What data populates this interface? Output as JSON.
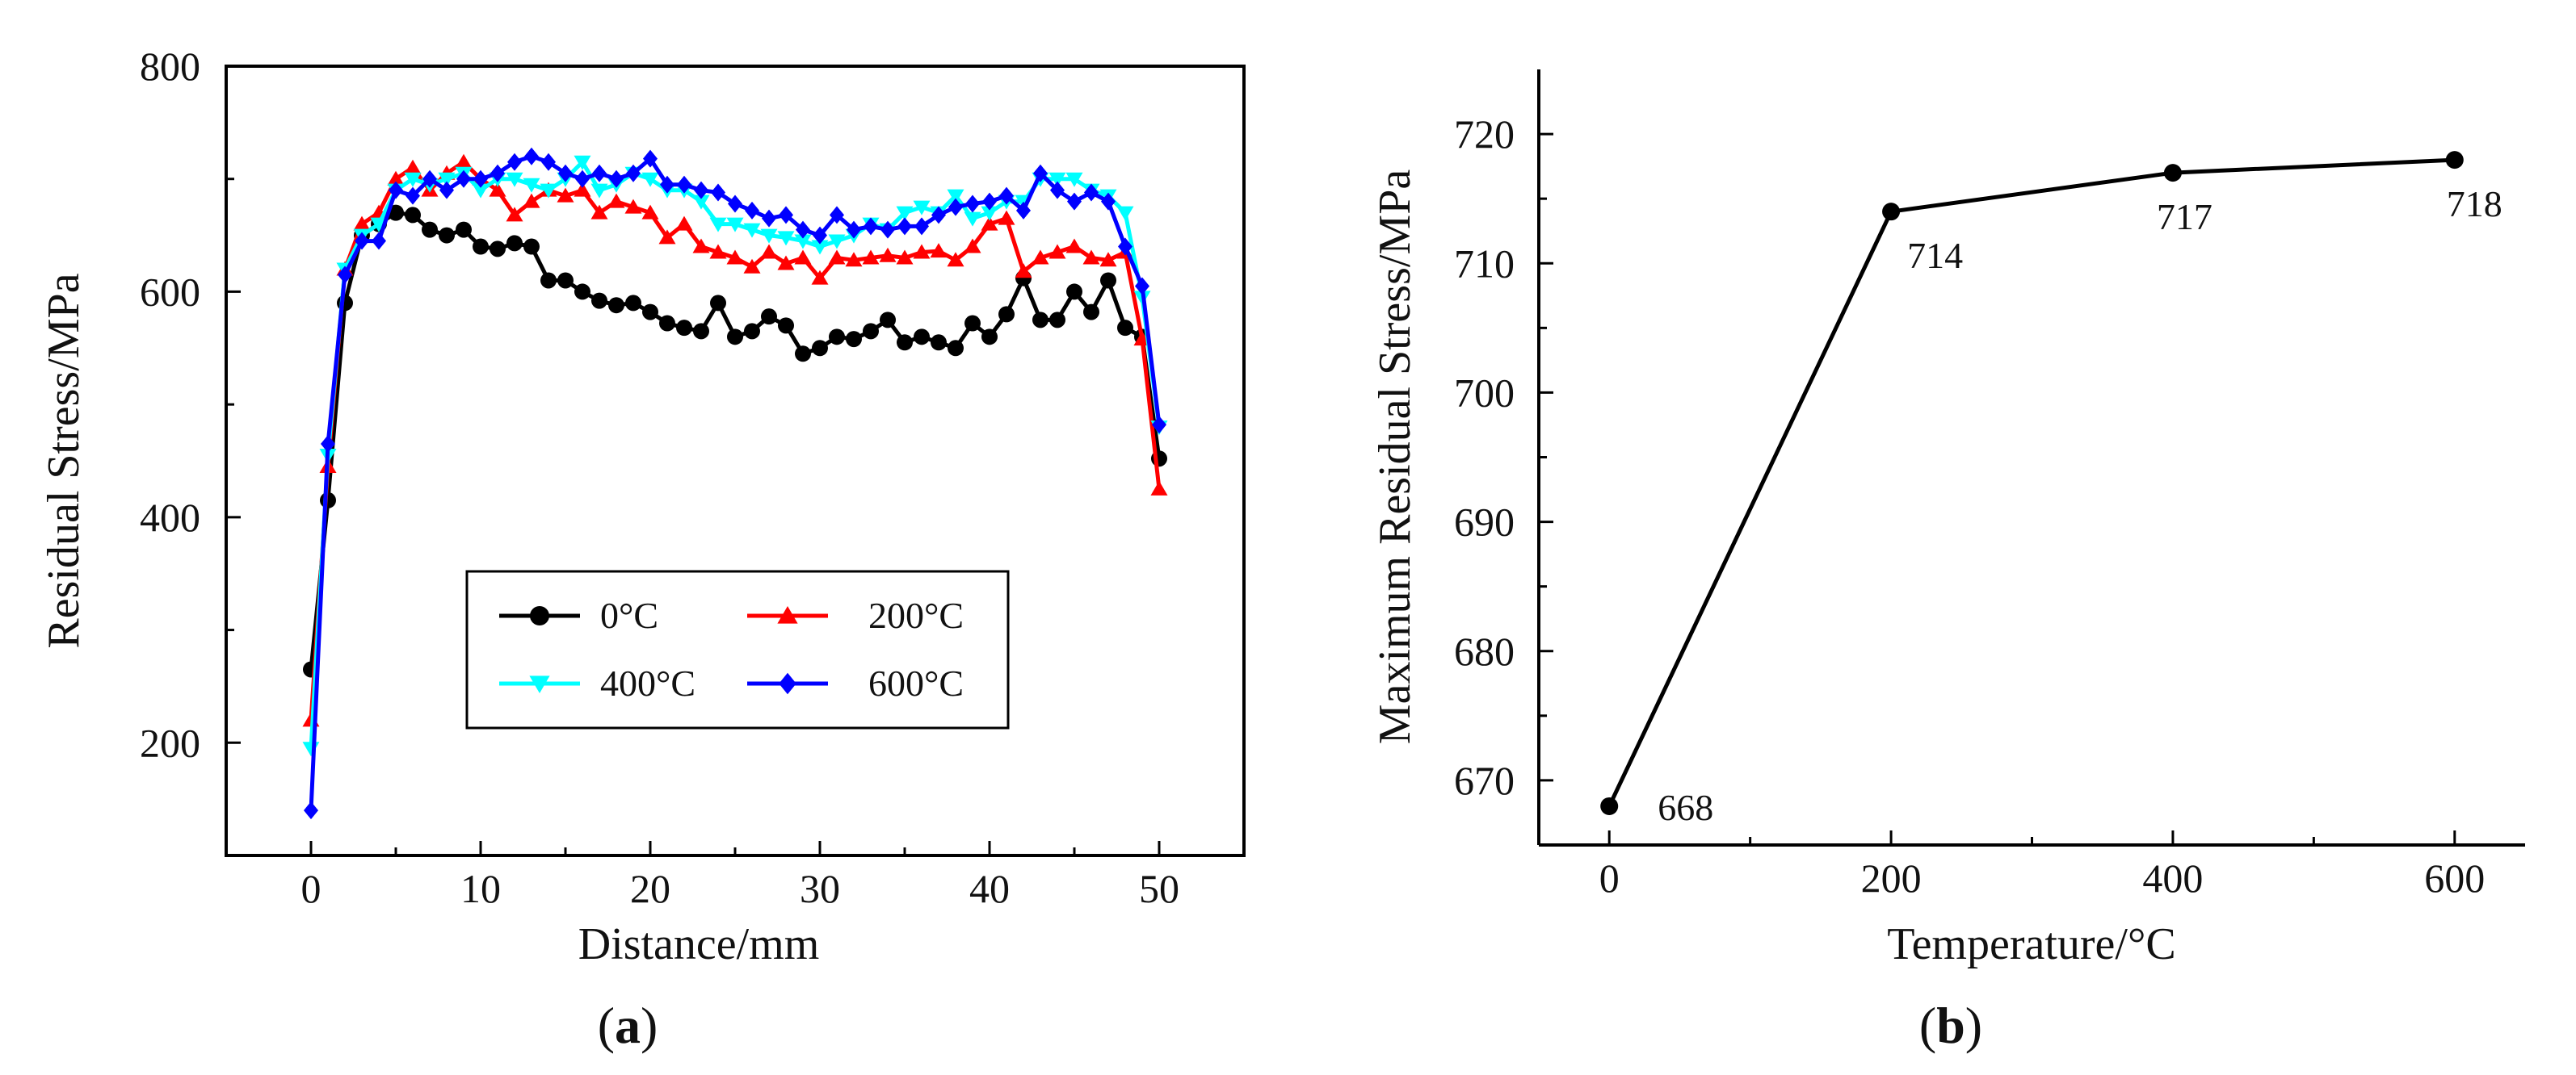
{
  "chart_data": [
    {
      "type": "line",
      "panel_label": "a",
      "xlabel": "Distance/mm",
      "ylabel": "Residual Stress/MPa",
      "xlim": [
        -5,
        55
      ],
      "ylim": [
        100,
        800
      ],
      "x_ticks": [
        0,
        10,
        20,
        30,
        40,
        50
      ],
      "y_ticks": [
        200,
        400,
        600,
        800
      ],
      "x_tick_labels": [
        "0",
        "10",
        "20",
        "30",
        "40",
        "50"
      ],
      "y_tick_labels": [
        "200",
        "400",
        "600",
        "800"
      ],
      "legend_position": "bottom-center",
      "x": [
        0,
        1,
        2,
        3,
        4,
        5,
        6,
        7,
        8,
        9,
        10,
        11,
        12,
        13,
        14,
        15,
        16,
        17,
        18,
        19,
        20,
        21,
        22,
        23,
        24,
        25,
        26,
        27,
        28,
        29,
        30,
        31,
        32,
        33,
        34,
        35,
        36,
        37,
        38,
        39,
        40,
        41,
        42,
        43,
        44,
        45,
        46,
        47,
        48,
        49,
        50
      ],
      "series": [
        {
          "name": "0°C",
          "color": "#000000",
          "marker": "circle",
          "values": [
            265,
            415,
            590,
            650,
            660,
            670,
            668,
            655,
            650,
            655,
            640,
            638,
            643,
            640,
            610,
            610,
            600,
            592,
            588,
            590,
            582,
            572,
            568,
            565,
            590,
            560,
            565,
            578,
            570,
            545,
            550,
            560,
            558,
            565,
            575,
            555,
            560,
            555,
            550,
            572,
            560,
            580,
            612,
            575,
            575,
            600,
            582,
            610,
            568,
            560,
            452
          ]
        },
        {
          "name": "200°C",
          "color": "#ff0000",
          "marker": "triangle-up",
          "values": [
            220,
            445,
            620,
            660,
            670,
            700,
            710,
            690,
            705,
            715,
            700,
            690,
            668,
            680,
            690,
            685,
            690,
            670,
            680,
            675,
            670,
            648,
            660,
            640,
            635,
            630,
            622,
            635,
            625,
            630,
            612,
            630,
            628,
            630,
            632,
            630,
            635,
            636,
            628,
            640,
            660,
            665,
            618,
            630,
            635,
            640,
            630,
            628,
            635,
            558,
            425
          ]
        },
        {
          "name": "400°C",
          "color": "#00ffff",
          "marker": "triangle-down",
          "values": [
            195,
            455,
            620,
            650,
            660,
            690,
            700,
            695,
            700,
            705,
            690,
            700,
            700,
            695,
            690,
            700,
            715,
            690,
            695,
            705,
            700,
            690,
            690,
            680,
            660,
            660,
            655,
            650,
            648,
            645,
            640,
            645,
            650,
            660,
            655,
            670,
            675,
            670,
            685,
            665,
            670,
            680,
            680,
            700,
            700,
            700,
            690,
            685,
            670,
            595,
            480
          ]
        },
        {
          "name": "600°C",
          "color": "#0000ff",
          "marker": "diamond",
          "values": [
            140,
            465,
            615,
            645,
            645,
            690,
            685,
            700,
            690,
            700,
            700,
            705,
            715,
            720,
            715,
            705,
            700,
            705,
            700,
            705,
            718,
            695,
            695,
            690,
            688,
            678,
            672,
            665,
            668,
            655,
            650,
            668,
            655,
            658,
            655,
            658,
            658,
            668,
            675,
            678,
            680,
            685,
            672,
            705,
            690,
            680,
            688,
            680,
            640,
            605,
            482
          ]
        }
      ]
    },
    {
      "type": "line",
      "panel_label": "b",
      "xlabel": "Temperature/°C",
      "ylabel": "Maximum Residual Stress/MPa",
      "xlim": [
        -50,
        650
      ],
      "ylim": [
        665,
        725
      ],
      "x_ticks": [
        0,
        200,
        400,
        600
      ],
      "y_ticks": [
        670,
        680,
        690,
        700,
        710,
        720
      ],
      "x_tick_labels": [
        "0",
        "200",
        "400",
        "600"
      ],
      "y_tick_labels": [
        "670",
        "680",
        "690",
        "700",
        "710",
        "720"
      ],
      "x": [
        0,
        200,
        400,
        600
      ],
      "values": [
        668,
        714,
        717,
        718
      ],
      "data_labels": [
        "668",
        "714",
        "717",
        "718"
      ],
      "color": "#000000",
      "marker": "circle"
    }
  ]
}
